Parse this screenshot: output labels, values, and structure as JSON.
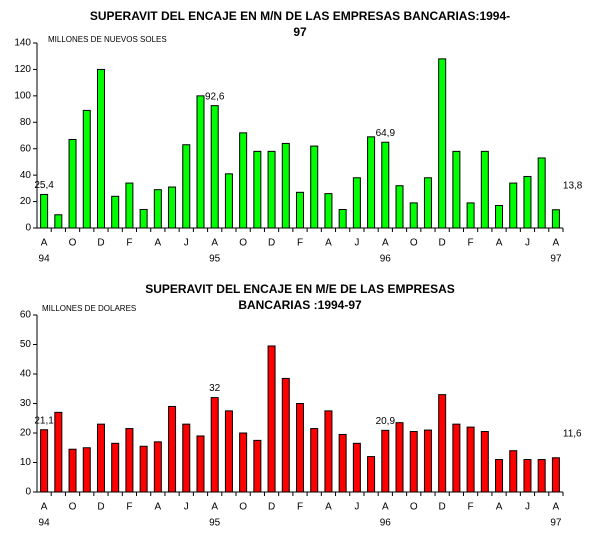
{
  "chart_data": [
    {
      "type": "bar",
      "title_lines": [
        "SUPERAVIT DEL ENCAJE EN M/N DE LAS EMPRESAS BANCARIAS:1994-",
        "97"
      ],
      "y_label": "MILLONES DE NUEVOS SOLES",
      "categories": [
        "A",
        null,
        "O",
        null,
        "D",
        null,
        "F",
        null,
        "A",
        null,
        "J",
        null,
        "A",
        null,
        "O",
        null,
        "D",
        null,
        "F",
        null,
        "A",
        null,
        "J",
        null,
        "A",
        null,
        "O",
        null,
        "D",
        null,
        "F",
        null,
        "A",
        null,
        "J",
        null,
        "A"
      ],
      "year_labels": [
        "94",
        null,
        null,
        null,
        null,
        null,
        null,
        null,
        null,
        null,
        null,
        null,
        "95",
        null,
        null,
        null,
        null,
        null,
        null,
        null,
        null,
        null,
        null,
        null,
        "96",
        null,
        null,
        null,
        null,
        null,
        null,
        null,
        null,
        null,
        null,
        null,
        "97"
      ],
      "values": [
        25.4,
        10,
        67,
        89,
        120,
        24,
        34,
        14,
        29,
        31,
        63,
        100,
        92.6,
        41,
        72,
        58,
        58,
        64,
        27,
        62,
        26,
        14,
        38,
        69,
        64.9,
        32,
        19,
        38,
        128,
        58,
        19,
        58,
        17,
        34,
        39,
        53,
        13.8
      ],
      "value_labels": [
        "25,4",
        null,
        null,
        null,
        null,
        null,
        null,
        null,
        null,
        null,
        null,
        null,
        "92,6",
        null,
        null,
        null,
        null,
        null,
        null,
        null,
        null,
        null,
        null,
        null,
        "64,9",
        null,
        null,
        null,
        null,
        null,
        null,
        null,
        null,
        null,
        null,
        null,
        "13,8"
      ],
      "color": "#00ff00",
      "ylim": [
        0,
        140
      ],
      "yticks": [
        0,
        20,
        40,
        60,
        80,
        100,
        120,
        140
      ],
      "grid": false
    },
    {
      "type": "bar",
      "title_lines": [
        "SUPERAVIT DEL ENCAJE EN M/E DE LAS EMPRESAS",
        "BANCARIAS :1994-97"
      ],
      "y_label": "MILLONES DE DOLARES",
      "categories": [
        "A",
        null,
        "O",
        null,
        "D",
        null,
        "F",
        null,
        "A",
        null,
        "J",
        null,
        "A",
        null,
        "O",
        null,
        "D",
        null,
        "F",
        null,
        "A",
        null,
        "J",
        null,
        "A",
        null,
        "O",
        null,
        "D",
        null,
        "F",
        null,
        "A",
        null,
        "J",
        null,
        "A"
      ],
      "year_labels": [
        "94",
        null,
        null,
        null,
        null,
        null,
        null,
        null,
        null,
        null,
        null,
        null,
        "95",
        null,
        null,
        null,
        null,
        null,
        null,
        null,
        null,
        null,
        null,
        null,
        "96",
        null,
        null,
        null,
        null,
        null,
        null,
        null,
        null,
        null,
        null,
        null,
        "97"
      ],
      "values": [
        21.1,
        27,
        14.5,
        15,
        23,
        16.5,
        21.5,
        15.5,
        17,
        29,
        23,
        19,
        32,
        27.5,
        20,
        17.5,
        49.5,
        38.5,
        30,
        21.5,
        27.5,
        19.5,
        16.5,
        12,
        20.9,
        23.5,
        20.5,
        21,
        33,
        23,
        22,
        20.5,
        11,
        14,
        11,
        11,
        11.6
      ],
      "value_labels": [
        "21,1",
        null,
        null,
        null,
        null,
        null,
        null,
        null,
        null,
        null,
        null,
        null,
        "32",
        null,
        null,
        null,
        null,
        null,
        null,
        null,
        null,
        null,
        null,
        null,
        "20,9",
        null,
        null,
        null,
        null,
        null,
        null,
        null,
        null,
        null,
        null,
        null,
        "11,6"
      ],
      "color": "#ff0000",
      "ylim": [
        0,
        60
      ],
      "yticks": [
        0,
        10,
        20,
        30,
        40,
        50,
        60
      ],
      "grid": false
    }
  ]
}
